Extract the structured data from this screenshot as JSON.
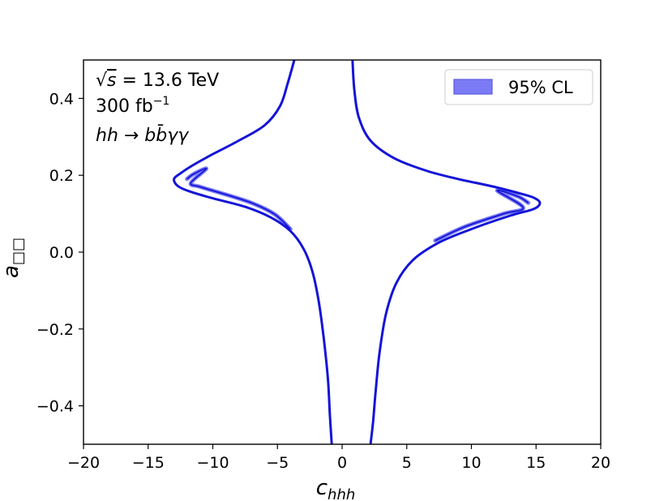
{
  "chart_data": {
    "type": "line",
    "title": "",
    "xlabel_main": "c",
    "xlabel_sub": "hhh",
    "ylabel_main": "a",
    "ylabel_sub": "□□",
    "xlim": [
      -20,
      20
    ],
    "ylim": [
      -0.5,
      0.5
    ],
    "xticks": [
      -20,
      -15,
      -10,
      -5,
      0,
      5,
      10,
      15,
      20
    ],
    "yticks": [
      -0.4,
      -0.2,
      0.0,
      0.2,
      0.4
    ],
    "xtick_labels": [
      "−20",
      "−15",
      "−10",
      "−5",
      "0",
      "5",
      "10",
      "15",
      "20"
    ],
    "ytick_labels": [
      "−0.4",
      "−0.2",
      "0.0",
      "0.2",
      "0.4"
    ],
    "grid": false,
    "annotations": {
      "line1_pre": "√",
      "line1_s": "s",
      "line1_post": " = 13.6 TeV",
      "line2_main": "300 fb",
      "line2_sup": "−1",
      "line3": "hh → bb̄γγ"
    },
    "legend": {
      "position": "top-right",
      "label": "95% CL"
    },
    "colors": {
      "line": "#1414d8",
      "fill": "#7b7bf5",
      "fill_edge": "#5b5be0"
    },
    "series": [
      {
        "band": "left",
        "outer": [
          [
            -3.7,
            0.5
          ],
          [
            -4.2,
            0.44
          ],
          [
            -4.8,
            0.38
          ],
          [
            -6.0,
            0.33
          ],
          [
            -8.0,
            0.29
          ],
          [
            -10.0,
            0.255
          ],
          [
            -11.6,
            0.225
          ],
          [
            -12.5,
            0.205
          ],
          [
            -13.0,
            0.19
          ],
          [
            -12.7,
            0.172
          ],
          [
            -11.8,
            0.158
          ],
          [
            -10.0,
            0.14
          ],
          [
            -7.5,
            0.118
          ],
          [
            -5.5,
            0.09
          ],
          [
            -4.0,
            0.055
          ],
          [
            -3.0,
            0.01
          ],
          [
            -2.3,
            -0.05
          ],
          [
            -1.8,
            -0.13
          ],
          [
            -1.4,
            -0.23
          ],
          [
            -1.1,
            -0.33
          ],
          [
            -0.95,
            -0.42
          ],
          [
            -0.8,
            -0.5
          ]
        ],
        "inner": [
          [
            -12.0,
            0.19
          ],
          [
            -11.5,
            0.203
          ],
          [
            -10.5,
            0.217
          ],
          [
            -11.7,
            0.18
          ],
          [
            -11.0,
            0.17
          ],
          [
            -9.5,
            0.155
          ],
          [
            -7.0,
            0.128
          ],
          [
            -5.2,
            0.098
          ],
          [
            -4.0,
            0.06
          ]
        ]
      },
      {
        "band": "right",
        "outer": [
          [
            0.8,
            0.5
          ],
          [
            0.95,
            0.42
          ],
          [
            1.3,
            0.35
          ],
          [
            2.2,
            0.29
          ],
          [
            4.0,
            0.245
          ],
          [
            6.5,
            0.212
          ],
          [
            9.0,
            0.19
          ],
          [
            11.5,
            0.172
          ],
          [
            13.5,
            0.155
          ],
          [
            14.8,
            0.142
          ],
          [
            15.3,
            0.128
          ],
          [
            14.8,
            0.112
          ],
          [
            13.0,
            0.095
          ],
          [
            10.0,
            0.06
          ],
          [
            7.5,
            0.025
          ],
          [
            5.5,
            -0.02
          ],
          [
            4.2,
            -0.08
          ],
          [
            3.4,
            -0.16
          ],
          [
            2.9,
            -0.26
          ],
          [
            2.6,
            -0.36
          ],
          [
            2.4,
            -0.44
          ],
          [
            2.2,
            -0.5
          ]
        ],
        "inner": [
          [
            14.4,
            0.128
          ],
          [
            13.6,
            0.145
          ],
          [
            12.0,
            0.16
          ],
          [
            14.0,
            0.116
          ],
          [
            12.5,
            0.1
          ],
          [
            9.5,
            0.066
          ],
          [
            7.2,
            0.03
          ]
        ]
      }
    ]
  }
}
